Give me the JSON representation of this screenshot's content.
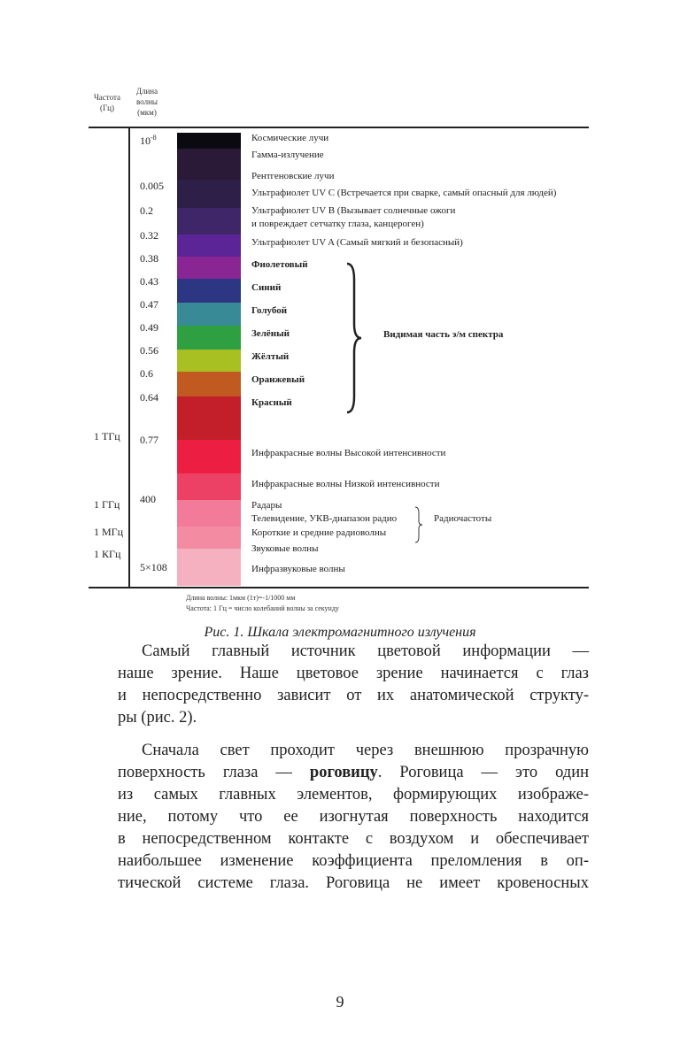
{
  "figure": {
    "header_freq": "Частота (Гц)",
    "header_wave": "Длина волны (мкм)",
    "wavelengths": [
      "10-8",
      "0.005",
      "0.2",
      "0.32",
      "0.38",
      "0.43",
      "0.47",
      "0.49",
      "0.56",
      "0.6",
      "0.64",
      "0.77",
      "400",
      "5×108"
    ],
    "frequencies": [
      "1 ТГц",
      "1 ГГц",
      "1 МГц",
      "1 КГц"
    ],
    "bands": [
      "#0a0a10",
      "#2a1a38",
      "#2d1f48",
      "#3e2668",
      "#5b2597",
      "#8a2594",
      "#2c3682",
      "#388b96",
      "#2fa041",
      "#a9c022",
      "#c05a21",
      "#c21f2a",
      "#ec1f42",
      "#ec4164",
      "#f27b99",
      "#f38ba2",
      "#f6b1c1"
    ],
    "labels": [
      "Космические лучи",
      "Гамма-излучение",
      "Рентгеновские лучи",
      "Ультрафиолет UV C (Встречается при сварке, самый опасный для людей)",
      "Ультрафиолет UV B (Вызывает солнечные ожоги",
      "и повреждает сетчатку глаза, канцероген)",
      "Ультрафиолет UV A (Самый мягкий и безопасный)",
      "Фиолетовый",
      "Синий",
      "Голубой",
      "Зелёный",
      "Жёлтый",
      "Оранжевый",
      "Красный",
      "Инфракрасные волны Высокой интенсивности",
      "Инфракрасные волны Низкой интенсивности",
      "Радары",
      "Телевидение, УКВ-диапазон радио",
      "Короткие и средние радиоволны",
      "Звуковые волны",
      "Инфразвуковые волны"
    ],
    "visible_label": "Видимая часть э/м спектра",
    "radio_label": "Радиочастоты",
    "notes": [
      "Длина волны: 1мкм (1т)=-1/1000 мм",
      "Частота: 1 Гц = число колебаний волны за секунду"
    ]
  },
  "caption": "Рис. 1. Шкала электромагнитного излучения",
  "text": {
    "p1": [
      "Самый главный источник цветовой информации —",
      "наше зрение. Наше цветовое зрение начинается с глаз",
      "и непосредственно зависит от их анатомической структу-",
      "ры (рис. 2)."
    ],
    "p2a": "Сначала свет проходит через внешнюю прозрачную",
    "p2b_pre": "поверхность глаза — ",
    "p2b_bold": "роговицу",
    "p2b_post": ". Роговица — это один",
    "p2": [
      "из самых главных элементов, формирующих изображе-",
      "ние, потому что ее изогнутая поверхность находится",
      "в непосредственном контакте с воздухом и обеспечивает",
      "наибольшее изменение коэффициента преломления в оп-",
      "тической системе глаза. Роговица не имеет кровеносных"
    ]
  },
  "page_number": "9"
}
